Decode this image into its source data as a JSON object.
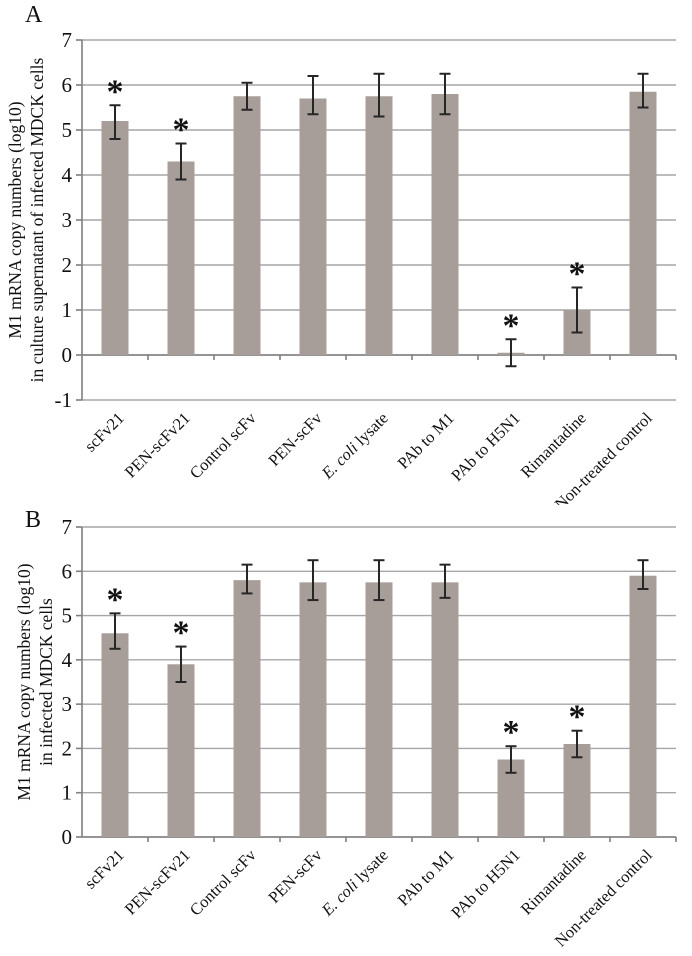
{
  "figure": {
    "background": "#ffffff"
  },
  "colors": {
    "bar": "#a89e99",
    "grid": "#a6a6a6",
    "axis": "#7f7f7f",
    "error_bar": "#262626",
    "text": "#111111"
  },
  "chart_data": [
    {
      "panel_label": "A",
      "type": "bar",
      "title": "",
      "ylabel_lines": [
        "M1 mRNA copy numbers (log10)",
        "in culture supernatant of infected MDCK cells"
      ],
      "xlabel": "",
      "ylim": [
        -1,
        7
      ],
      "yticks": [
        7,
        6,
        5,
        4,
        3,
        2,
        1,
        0,
        -1
      ],
      "grid": true,
      "legend": "none",
      "categories": [
        "scFv21",
        "PEN-scFv21",
        "Control scFv",
        "PEN-scFv",
        "E. coli lysate",
        "PAb to M1",
        "PAb to H5N1",
        "Rimantadine",
        "Non-treated control"
      ],
      "italic_segment": "E. coli",
      "values": [
        5.2,
        4.3,
        5.75,
        5.7,
        5.75,
        5.8,
        0.05,
        1.0,
        5.85
      ],
      "err_high": [
        0.35,
        0.4,
        0.3,
        0.5,
        0.5,
        0.45,
        0.3,
        0.5,
        0.4
      ],
      "err_low": [
        0.4,
        0.4,
        0.3,
        0.35,
        0.45,
        0.45,
        0.3,
        0.5,
        0.35
      ],
      "significance_marker": "*",
      "significant": [
        true,
        true,
        false,
        false,
        false,
        false,
        true,
        true,
        false
      ]
    },
    {
      "panel_label": "B",
      "type": "bar",
      "title": "",
      "ylabel_lines": [
        "M1 mRNA copy numbers (log10)",
        "in infected MDCK cells"
      ],
      "xlabel": "",
      "ylim": [
        0,
        7
      ],
      "yticks": [
        7,
        6,
        5,
        4,
        3,
        2,
        1,
        0
      ],
      "grid": true,
      "legend": "none",
      "categories": [
        "scFv21",
        "PEN-scFv21",
        "Control scFv",
        "PEN-scFv",
        "E. coli lysate",
        "PAb to M1",
        "PAb to H5N1",
        "Rimantadine",
        "Non-treated control"
      ],
      "italic_segment": "E. coli",
      "values": [
        4.6,
        3.9,
        5.8,
        5.75,
        5.75,
        5.75,
        1.75,
        2.1,
        5.9
      ],
      "err_high": [
        0.45,
        0.4,
        0.35,
        0.5,
        0.5,
        0.4,
        0.3,
        0.3,
        0.35
      ],
      "err_low": [
        0.35,
        0.4,
        0.3,
        0.4,
        0.4,
        0.35,
        0.3,
        0.3,
        0.3
      ],
      "significance_marker": "*",
      "significant": [
        true,
        true,
        false,
        false,
        false,
        false,
        true,
        true,
        false
      ]
    }
  ]
}
